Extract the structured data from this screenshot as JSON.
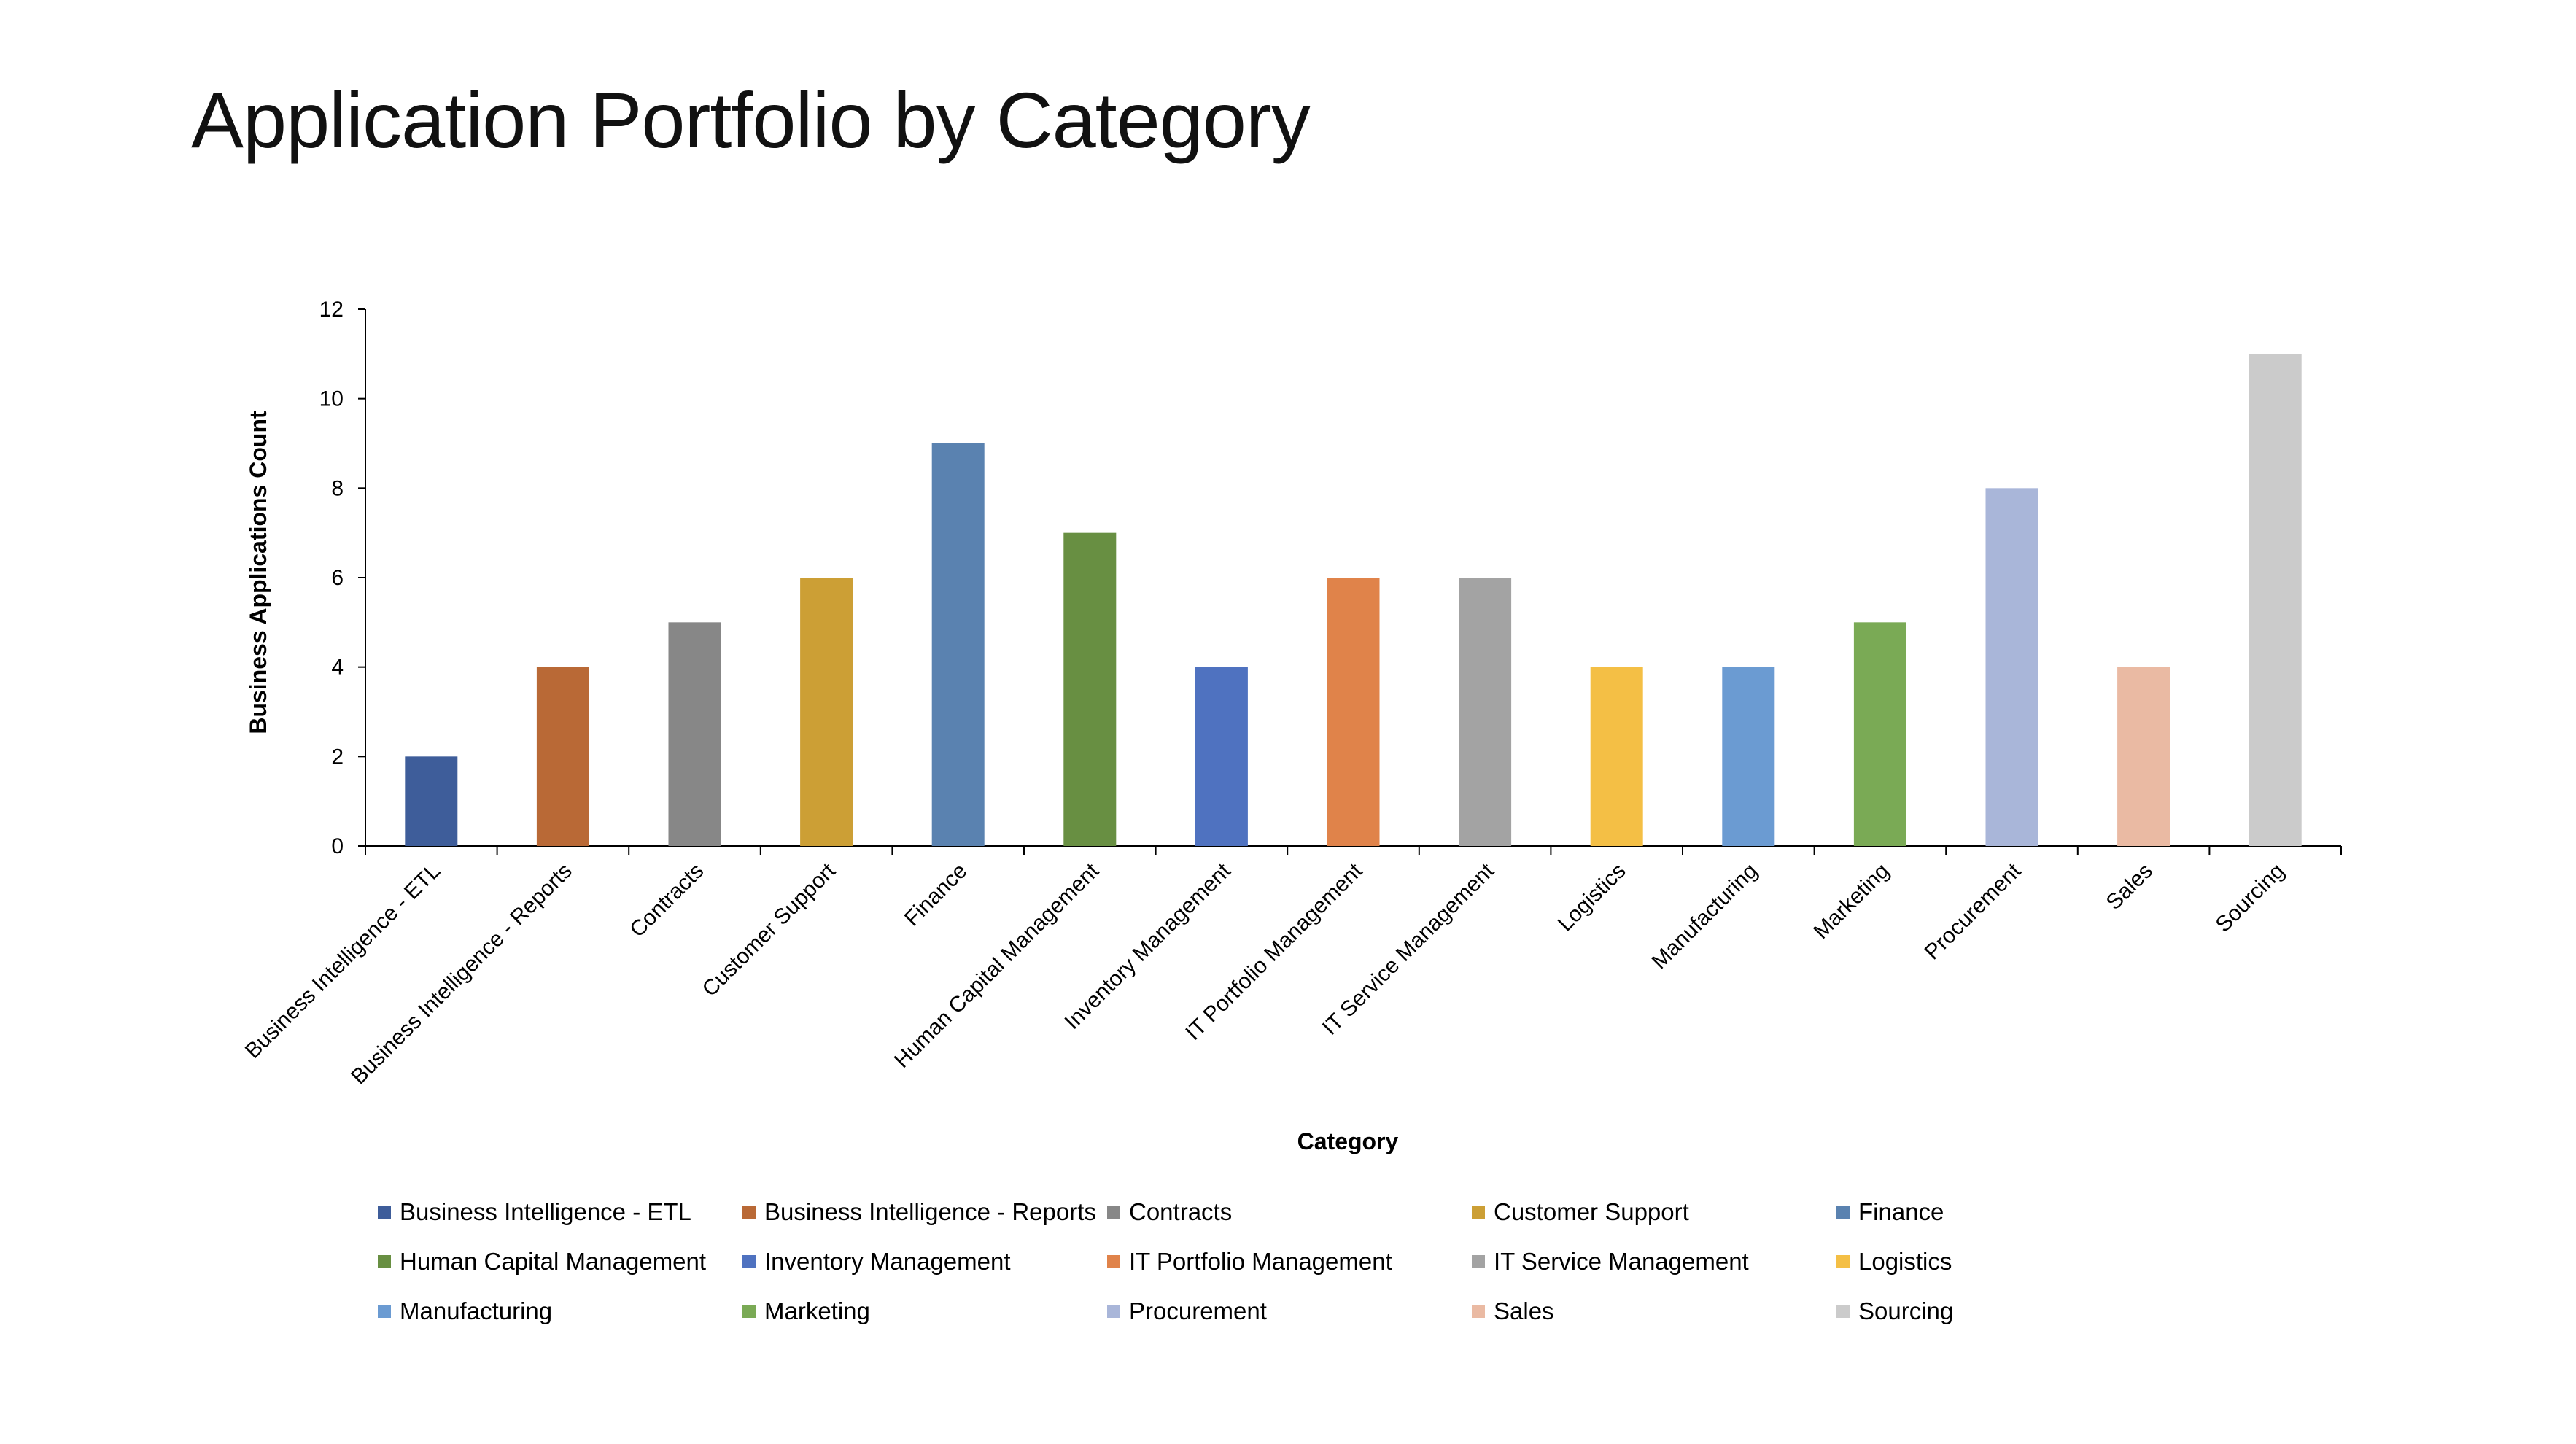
{
  "slide": {
    "title": "Application Portfolio by Category"
  },
  "chart_data": {
    "type": "bar",
    "title": "",
    "xlabel": "Category",
    "ylabel": "Business Applications Count",
    "ylim": [
      0,
      12
    ],
    "yticks": [
      0,
      2,
      4,
      6,
      8,
      10,
      12
    ],
    "grid": false,
    "legend_position": "bottom",
    "categories": [
      "Business Intelligence - ETL",
      "Business Intelligence - Reports",
      "Contracts",
      "Customer Support",
      "Finance",
      "Human Capital Management",
      "Inventory Management",
      "IT Portfolio Management",
      "IT Service Management",
      "Logistics",
      "Manufacturing",
      "Marketing",
      "Procurement",
      "Sales",
      "Sourcing"
    ],
    "values": [
      2,
      4,
      5,
      6,
      9,
      7,
      4,
      6,
      6,
      4,
      4,
      5,
      8,
      4,
      11
    ],
    "colors": [
      "#3E5D9A",
      "#B96936",
      "#878787",
      "#CC9F35",
      "#5A82B0",
      "#688F42",
      "#4F72C0",
      "#E0834A",
      "#A3A3A3",
      "#F4BF45",
      "#6B9BD2",
      "#7AAA55",
      "#A9B6D9",
      "#EABAA3",
      "#CBCBCB"
    ]
  }
}
